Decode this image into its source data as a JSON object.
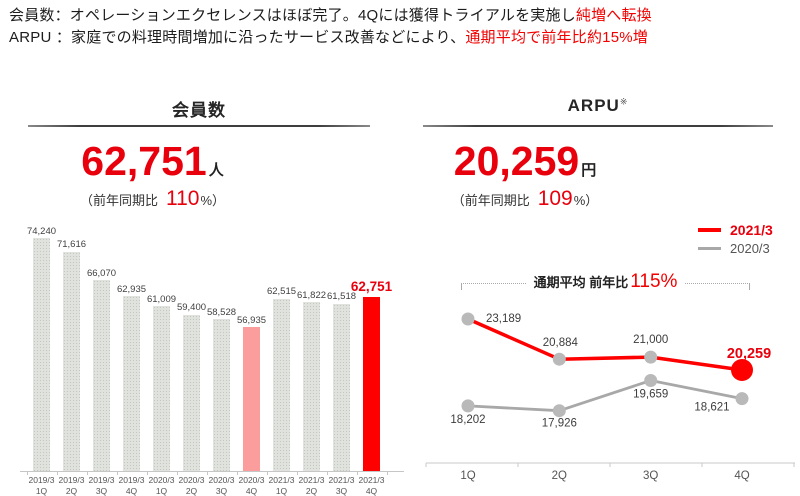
{
  "header": {
    "line1_black": "会員数：オペレーションエクセレンスはほぼ完了。4Qには獲得トライアルを実施し",
    "line1_red": "純増へ転換",
    "line2_black": "ARPU ：家庭での料理時間増加に沿ったサービス改善などにより、",
    "line2_red": "通期平均で前年比約15%増"
  },
  "members_panel": {
    "title": "会員数",
    "big_value": "62,751",
    "unit": "人",
    "yoy_prefix": "（前年同期比",
    "yoy_value": "110",
    "yoy_suffix": "%）"
  },
  "arpu_panel": {
    "title": "ARPU",
    "title_note": "※",
    "big_value": "20,259",
    "unit": "円",
    "yoy_prefix": "（前年同期比",
    "yoy_value": "109",
    "yoy_suffix": "%）",
    "legend": [
      {
        "label": "2021/3",
        "color": "#fe0000"
      },
      {
        "label": "2020/3",
        "color": "#a8a8a8"
      }
    ],
    "annotation_black": "通期平均 前年比",
    "annotation_red": "115%"
  },
  "colors": {
    "accent_red_text": "#e8000d",
    "chart_red": "#fe0000",
    "chart_pink": "#fc9d9d",
    "chart_gray_bar": "#e0e2dd",
    "chart_gray_line": "#a8a8a8",
    "marker_gray": "#b9b9b9"
  },
  "chart_data": [
    {
      "type": "bar",
      "title": "会員数",
      "unit": "人",
      "categories": [
        {
          "year": "2019/3",
          "q": "1Q"
        },
        {
          "year": "2019/3",
          "q": "2Q"
        },
        {
          "year": "2019/3",
          "q": "3Q"
        },
        {
          "year": "2019/3",
          "q": "4Q"
        },
        {
          "year": "2020/3",
          "q": "1Q"
        },
        {
          "year": "2020/3",
          "q": "2Q"
        },
        {
          "year": "2020/3",
          "q": "3Q"
        },
        {
          "year": "2020/3",
          "q": "4Q"
        },
        {
          "year": "2021/3",
          "q": "1Q"
        },
        {
          "year": "2021/3",
          "q": "2Q"
        },
        {
          "year": "2021/3",
          "q": "3Q"
        },
        {
          "year": "2021/3",
          "q": "4Q"
        }
      ],
      "values": [
        74240,
        71616,
        66070,
        62935,
        61009,
        59400,
        58528,
        56935,
        62515,
        61822,
        61518,
        62751
      ],
      "pink_index": 7,
      "red_index": 11,
      "ylim": [
        29000,
        76000
      ],
      "grid": false
    },
    {
      "type": "line",
      "title": "ARPU",
      "unit": "円",
      "categories": [
        "1Q",
        "2Q",
        "3Q",
        "4Q"
      ],
      "series": [
        {
          "name": "2021/3",
          "color": "#fe0000",
          "values": [
            23189,
            20884,
            21000,
            20259
          ]
        },
        {
          "name": "2020/3",
          "color": "#a8a8a8",
          "values": [
            18202,
            17926,
            19659,
            18621
          ]
        }
      ],
      "annotation": "通期平均 前年比115%",
      "legend_position": "top-right",
      "grid": false
    }
  ]
}
